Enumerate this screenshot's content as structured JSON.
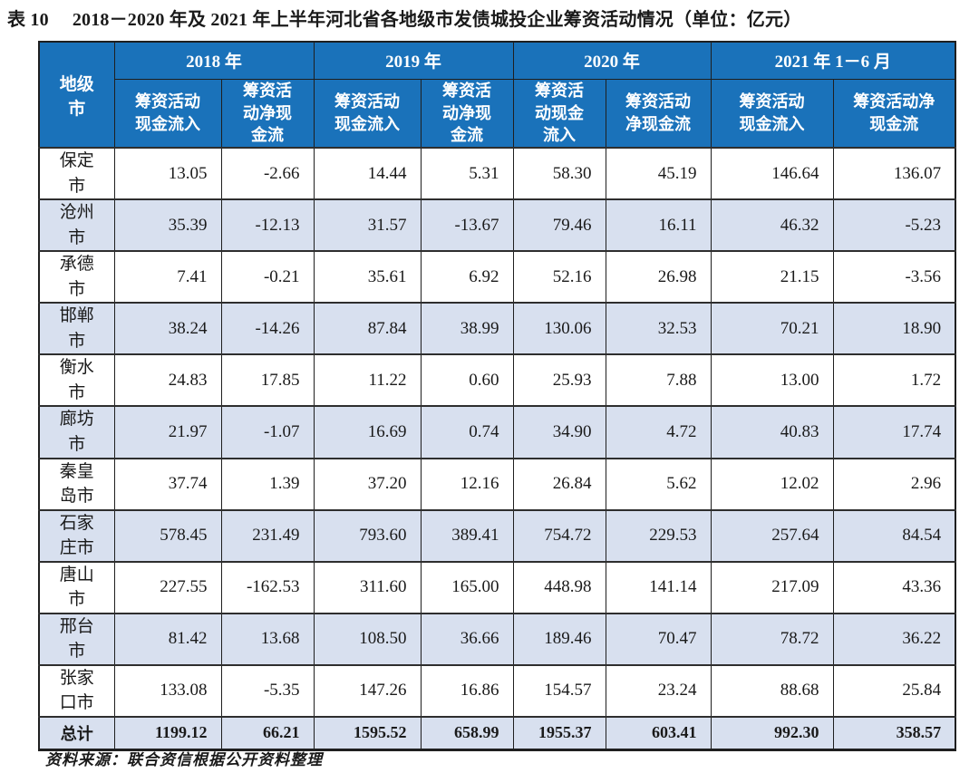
{
  "page": {
    "title_label": "表 10",
    "title_text": "2018－2020 年及 2021 年上半年河北省各地级市发债城投企业筹资活动情况（单位：亿元）",
    "source_note": "资料来源：联合资信根据公开资料整理"
  },
  "colors": {
    "header_bg": "#1a72ba",
    "header_text": "#ffffff",
    "row_shade": "#d8e0ef",
    "body_text": "#1a1a1a"
  },
  "table": {
    "corner_header": "地级市",
    "unit": "亿元",
    "year_groups": [
      {
        "label": "2018 年"
      },
      {
        "label": "2019 年"
      },
      {
        "label": "2020 年"
      },
      {
        "label": "2021 年 1－6 月"
      }
    ],
    "column_headers": [
      "筹资活动现金流入",
      "筹资活动净现金流",
      "筹资活动现金流入",
      "筹资活动净现金流",
      "筹资活动现金流入",
      "筹资活动净现金流",
      "筹资活动现金流入",
      "筹资活动净现金流"
    ],
    "rows": [
      {
        "city": "保定市",
        "values": [
          "13.05",
          "-2.66",
          "14.44",
          "5.31",
          "58.30",
          "45.19",
          "146.64",
          "136.07"
        ]
      },
      {
        "city": "沧州市",
        "values": [
          "35.39",
          "-12.13",
          "31.57",
          "-13.67",
          "79.46",
          "16.11",
          "46.32",
          "-5.23"
        ]
      },
      {
        "city": "承德市",
        "values": [
          "7.41",
          "-0.21",
          "35.61",
          "6.92",
          "52.16",
          "26.98",
          "21.15",
          "-3.56"
        ]
      },
      {
        "city": "邯郸市",
        "values": [
          "38.24",
          "-14.26",
          "87.84",
          "38.99",
          "130.06",
          "32.53",
          "70.21",
          "18.90"
        ]
      },
      {
        "city": "衡水市",
        "values": [
          "24.83",
          "17.85",
          "11.22",
          "0.60",
          "25.93",
          "7.88",
          "13.00",
          "1.72"
        ]
      },
      {
        "city": "廊坊市",
        "values": [
          "21.97",
          "-1.07",
          "16.69",
          "0.74",
          "34.90",
          "4.72",
          "40.83",
          "17.74"
        ]
      },
      {
        "city": "秦皇岛市",
        "values": [
          "37.74",
          "1.39",
          "37.20",
          "12.16",
          "26.84",
          "5.62",
          "12.02",
          "2.96"
        ]
      },
      {
        "city": "石家庄市",
        "values": [
          "578.45",
          "231.49",
          "793.60",
          "389.41",
          "754.72",
          "229.53",
          "257.64",
          "84.54"
        ]
      },
      {
        "city": "唐山市",
        "values": [
          "227.55",
          "-162.53",
          "311.60",
          "165.00",
          "448.98",
          "141.14",
          "217.09",
          "43.36"
        ]
      },
      {
        "city": "邢台市",
        "values": [
          "81.42",
          "13.68",
          "108.50",
          "36.66",
          "189.46",
          "70.47",
          "78.72",
          "36.22"
        ]
      },
      {
        "city": "张家口市",
        "values": [
          "133.08",
          "-5.35",
          "147.26",
          "16.86",
          "154.57",
          "23.24",
          "88.68",
          "25.84"
        ]
      }
    ],
    "total_row": {
      "label": "总计",
      "values": [
        "1199.12",
        "66.21",
        "1595.52",
        "658.99",
        "1955.37",
        "603.41",
        "992.30",
        "358.57"
      ]
    }
  }
}
